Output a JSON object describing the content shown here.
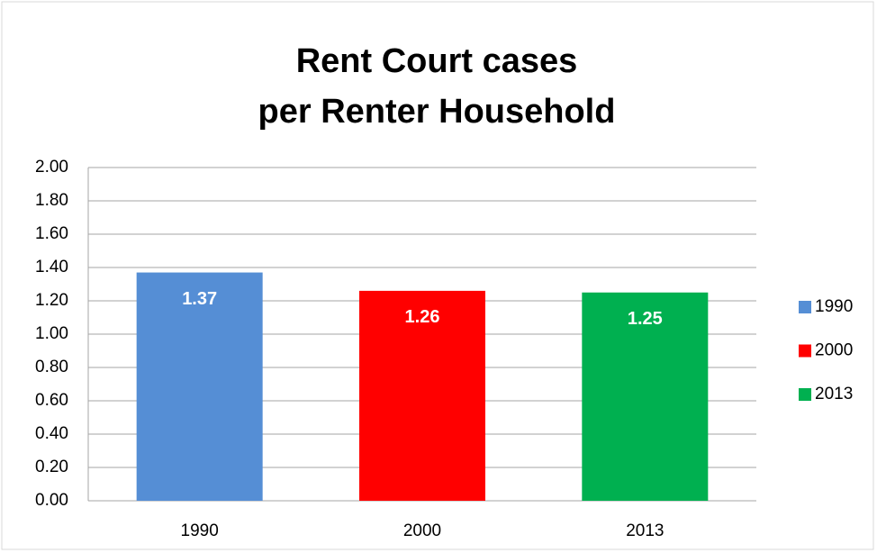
{
  "chart_data": {
    "type": "bar",
    "title": [
      "Rent Court cases",
      "per Renter Household"
    ],
    "categories": [
      "1990",
      "2000",
      "2013"
    ],
    "values": [
      1.37,
      1.26,
      1.25
    ],
    "colors": [
      "#558ed5",
      "#ff0000",
      "#00b050"
    ],
    "ylim": [
      0,
      2
    ],
    "yticks": [
      {
        "value": 0,
        "label": "0.00"
      },
      {
        "value": 0.2,
        "label": "0.20"
      },
      {
        "value": 0.4,
        "label": "0.40"
      },
      {
        "value": 0.6,
        "label": "0.60"
      },
      {
        "value": 0.8,
        "label": "0.80"
      },
      {
        "value": 1,
        "label": "1.00"
      },
      {
        "value": 1.2,
        "label": "1.20"
      },
      {
        "value": 1.4,
        "label": "1.40"
      },
      {
        "value": 1.6,
        "label": "1.60"
      },
      {
        "value": 1.8,
        "label": "1.80"
      },
      {
        "value": 2,
        "label": "2.00"
      }
    ],
    "grid": true,
    "legend": "right"
  }
}
